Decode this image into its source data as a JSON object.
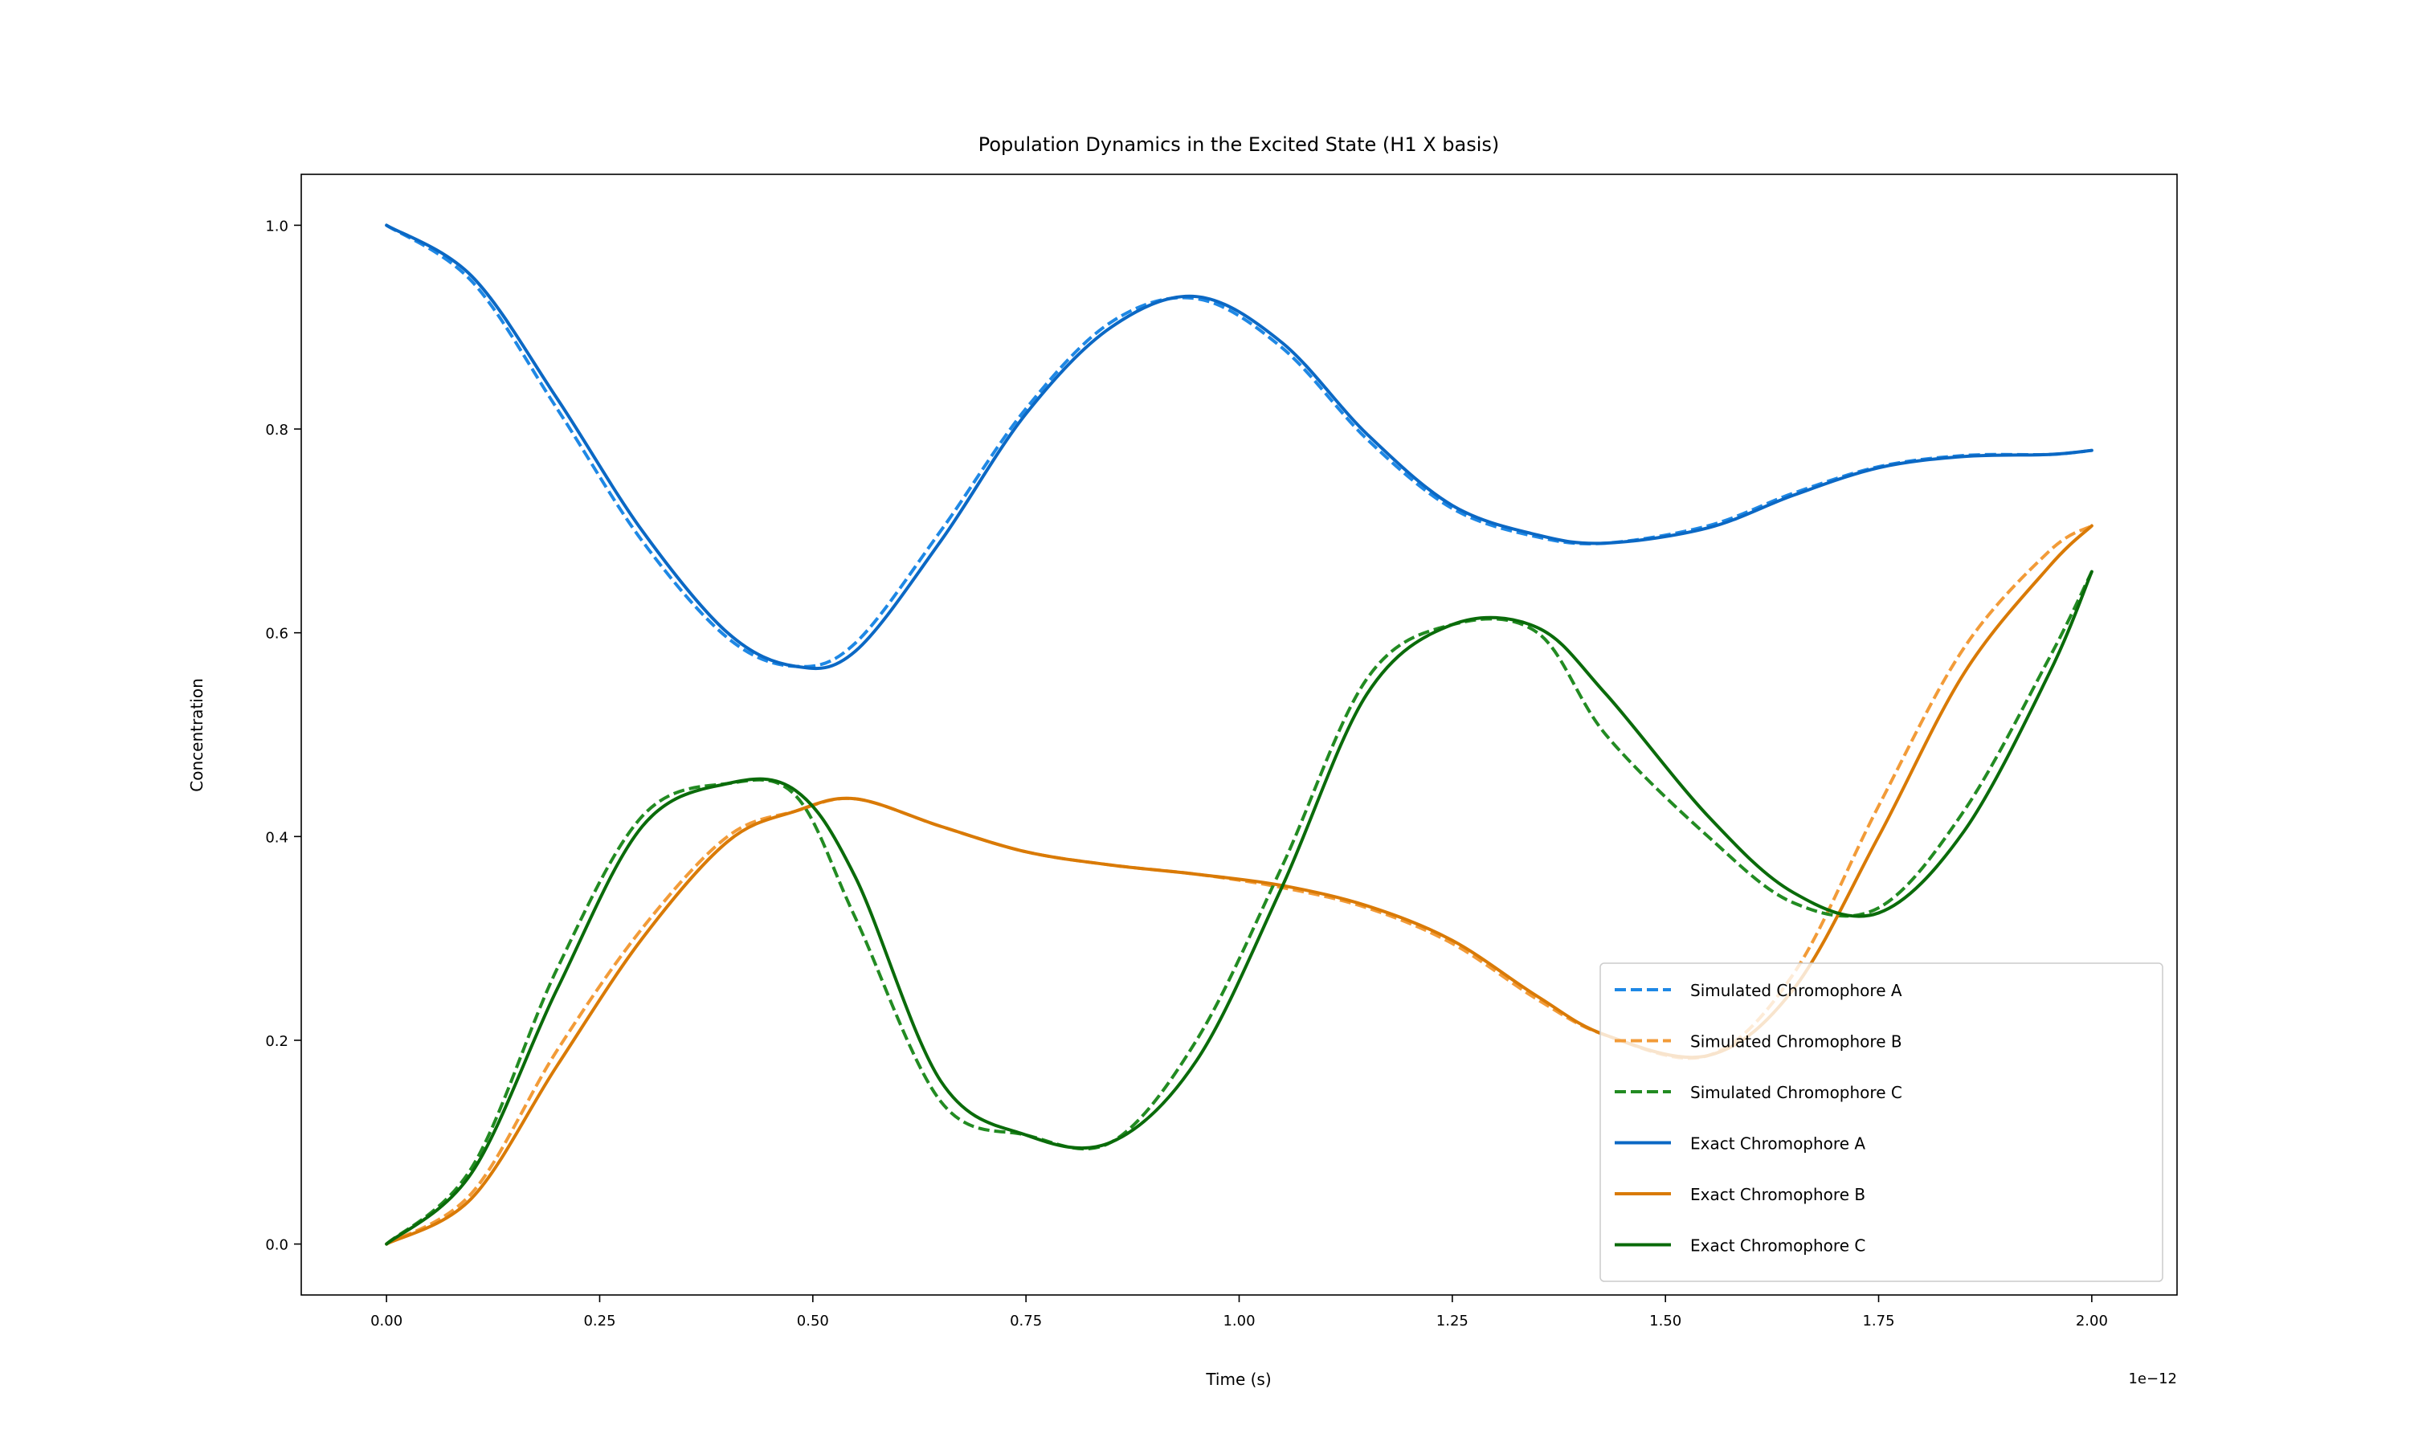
{
  "chart_data": {
    "type": "line",
    "title": "Population Dynamics in the Excited State (H1 X basis)",
    "xlabel": "Time (s)",
    "ylabel": "Concentration",
    "x_offset_label": "1e−12",
    "xlim": [
      -0.1,
      2.1
    ],
    "ylim": [
      -0.05,
      1.05
    ],
    "xticks": [
      0.0,
      0.25,
      0.5,
      0.75,
      1.0,
      1.25,
      1.5,
      1.75,
      2.0
    ],
    "xtick_labels": [
      "0.00",
      "0.25",
      "0.50",
      "0.75",
      "1.00",
      "1.25",
      "1.50",
      "1.75",
      "2.00"
    ],
    "yticks": [
      0.0,
      0.2,
      0.4,
      0.6,
      0.8,
      1.0
    ],
    "ytick_labels": [
      "0.0",
      "0.2",
      "0.4",
      "0.6",
      "0.8",
      "1.0"
    ],
    "grid": false,
    "legend_position": "lower-right",
    "x": [
      0.0,
      0.1,
      0.2,
      0.3,
      0.4,
      0.48,
      0.55,
      0.65,
      0.75,
      0.85,
      0.95,
      1.05,
      1.15,
      1.25,
      1.35,
      1.43,
      1.55,
      1.65,
      1.75,
      1.85,
      1.95,
      2.0
    ],
    "series": [
      {
        "name": "Simulated Chromophore A",
        "style": "dashed",
        "color": "#1e88e5",
        "values": [
          1.0,
          0.945,
          0.82,
          0.69,
          0.595,
          0.567,
          0.59,
          0.7,
          0.82,
          0.905,
          0.928,
          0.88,
          0.79,
          0.722,
          0.694,
          0.688,
          0.705,
          0.737,
          0.763,
          0.774,
          0.775,
          0.779
        ]
      },
      {
        "name": "Simulated Chromophore B",
        "style": "dashed",
        "color": "#f29b38",
        "values": [
          0.0,
          0.05,
          0.19,
          0.31,
          0.4,
          0.425,
          0.437,
          0.41,
          0.385,
          0.372,
          0.363,
          0.35,
          0.33,
          0.295,
          0.24,
          0.205,
          0.185,
          0.265,
          0.43,
          0.585,
          0.68,
          0.705
        ]
      },
      {
        "name": "Simulated Chromophore C",
        "style": "dashed",
        "color": "#228b22",
        "values": [
          0.0,
          0.075,
          0.27,
          0.42,
          0.452,
          0.44,
          0.32,
          0.14,
          0.107,
          0.1,
          0.2,
          0.37,
          0.555,
          0.608,
          0.6,
          0.5,
          0.4,
          0.335,
          0.33,
          0.425,
          0.575,
          0.66
        ]
      },
      {
        "name": "Exact Chromophore A",
        "style": "solid",
        "color": "#0b68c4",
        "values": [
          1.0,
          0.95,
          0.83,
          0.7,
          0.6,
          0.567,
          0.582,
          0.69,
          0.815,
          0.9,
          0.93,
          0.885,
          0.795,
          0.725,
          0.696,
          0.688,
          0.703,
          0.735,
          0.762,
          0.773,
          0.775,
          0.779
        ]
      },
      {
        "name": "Exact Chromophore B",
        "style": "solid",
        "color": "#d97a06",
        "values": [
          0.0,
          0.045,
          0.175,
          0.3,
          0.395,
          0.425,
          0.437,
          0.41,
          0.385,
          0.372,
          0.363,
          0.352,
          0.332,
          0.298,
          0.243,
          0.205,
          0.185,
          0.25,
          0.4,
          0.56,
          0.665,
          0.705
        ]
      },
      {
        "name": "Exact Chromophore C",
        "style": "solid",
        "color": "#0a6b0a",
        "values": [
          0.0,
          0.07,
          0.25,
          0.41,
          0.452,
          0.445,
          0.36,
          0.16,
          0.107,
          0.1,
          0.18,
          0.35,
          0.54,
          0.608,
          0.605,
          0.54,
          0.42,
          0.345,
          0.325,
          0.405,
          0.56,
          0.66
        ]
      }
    ]
  }
}
